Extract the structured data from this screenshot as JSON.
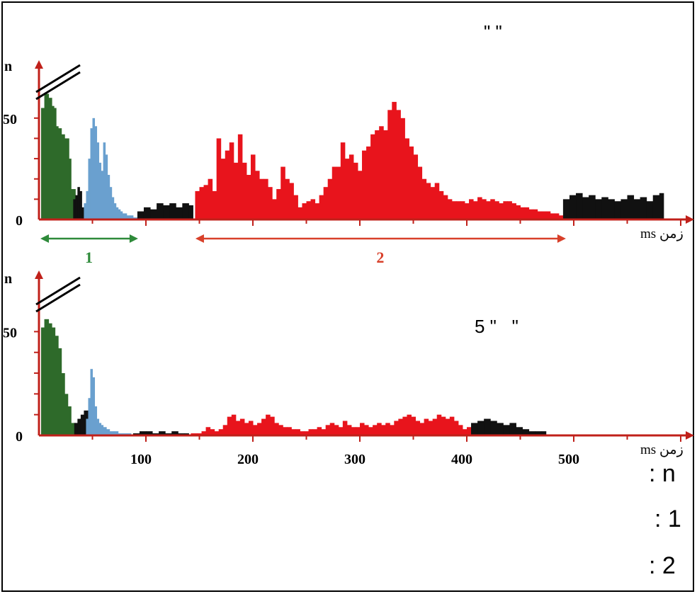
{
  "annotations": {
    "top_title": "\" \"",
    "bottom_title": "5 \"   \"",
    "legend_n": ": n",
    "legend_1": ": 1",
    "legend_2": ": 2"
  },
  "colors": {
    "axis": "#c0201a",
    "phase1": "#2e6a2a",
    "phase1b": "#6aa0cf",
    "phase2": "#e8141c",
    "baseline": "#111111",
    "range1_arrow": "#2e8a3a",
    "range2_arrow": "#d8402a"
  },
  "chart_data": [
    {
      "type": "bar",
      "ylabel": "n",
      "xlabel": "ms زمن",
      "y_ticks": [
        "50",
        "0"
      ],
      "ylim": [
        0,
        55
      ],
      "xlim": [
        0,
        500
      ],
      "axis_break": true,
      "range_labels": [
        {
          "label": "1",
          "from": 0,
          "to": 90,
          "color": "green"
        },
        {
          "label": "2",
          "from": 145,
          "to": 490,
          "color": "red"
        }
      ],
      "series": [
        {
          "color_key": "phase1",
          "bars": [
            [
              2,
              55
            ],
            [
              5,
              62
            ],
            [
              9,
              60
            ],
            [
              12,
              56
            ],
            [
              14,
              55
            ],
            [
              16,
              46
            ],
            [
              18,
              45
            ],
            [
              21,
              42
            ],
            [
              24,
              40
            ],
            [
              26,
              40
            ],
            [
              28,
              30
            ],
            [
              30,
              15
            ]
          ]
        },
        {
          "color_key": "baseline",
          "bars": [
            [
              32,
              10
            ],
            [
              34,
              12
            ],
            [
              36,
              16
            ],
            [
              38,
              14
            ],
            [
              40,
              6
            ]
          ]
        },
        {
          "color_key": "phase1b",
          "bars": [
            [
              42,
              8
            ],
            [
              44,
              14
            ],
            [
              46,
              30
            ],
            [
              48,
              45
            ],
            [
              50,
              50
            ],
            [
              52,
              46
            ],
            [
              54,
              38
            ],
            [
              56,
              28
            ],
            [
              58,
              24
            ],
            [
              60,
              38
            ],
            [
              62,
              32
            ],
            [
              64,
              22
            ],
            [
              66,
              16
            ],
            [
              68,
              11
            ],
            [
              70,
              8
            ],
            [
              72,
              6
            ],
            [
              74,
              5
            ],
            [
              76,
              4
            ],
            [
              78,
              3
            ],
            [
              80,
              3
            ],
            [
              82,
              2
            ],
            [
              85,
              2
            ],
            [
              88,
              1
            ]
          ]
        },
        {
          "color_key": "baseline",
          "bars": [
            [
              92,
              4
            ],
            [
              98,
              6
            ],
            [
              104,
              5
            ],
            [
              110,
              8
            ],
            [
              116,
              7
            ],
            [
              122,
              8
            ],
            [
              128,
              6
            ],
            [
              134,
              8
            ],
            [
              140,
              7
            ]
          ]
        },
        {
          "color_key": "phase2",
          "bars": [
            [
              146,
              14
            ],
            [
              150,
              16
            ],
            [
              154,
              17
            ],
            [
              158,
              20
            ],
            [
              162,
              14
            ],
            [
              166,
              40
            ],
            [
              170,
              30
            ],
            [
              174,
              34
            ],
            [
              178,
              38
            ],
            [
              182,
              28
            ],
            [
              186,
              42
            ],
            [
              190,
              28
            ],
            [
              194,
              22
            ],
            [
              198,
              32
            ],
            [
              202,
              24
            ],
            [
              206,
              20
            ],
            [
              210,
              20
            ],
            [
              214,
              16
            ],
            [
              218,
              10
            ],
            [
              222,
              15
            ],
            [
              226,
              26
            ],
            [
              230,
              20
            ],
            [
              234,
              18
            ],
            [
              238,
              12
            ],
            [
              242,
              6
            ],
            [
              246,
              8
            ],
            [
              250,
              9
            ],
            [
              254,
              10
            ],
            [
              258,
              8
            ],
            [
              262,
              12
            ],
            [
              266,
              16
            ],
            [
              270,
              20
            ],
            [
              274,
              26
            ],
            [
              278,
              26
            ],
            [
              282,
              38
            ],
            [
              286,
              30
            ],
            [
              290,
              32
            ],
            [
              294,
              28
            ],
            [
              298,
              24
            ],
            [
              302,
              34
            ],
            [
              306,
              36
            ],
            [
              310,
              42
            ],
            [
              314,
              44
            ],
            [
              318,
              46
            ],
            [
              322,
              44
            ],
            [
              326,
              54
            ],
            [
              330,
              58
            ],
            [
              334,
              54
            ],
            [
              338,
              50
            ],
            [
              342,
              40
            ],
            [
              346,
              36
            ],
            [
              350,
              32
            ],
            [
              354,
              26
            ],
            [
              358,
              20
            ],
            [
              362,
              18
            ],
            [
              366,
              16
            ],
            [
              370,
              18
            ],
            [
              374,
              14
            ],
            [
              378,
              12
            ],
            [
              382,
              10
            ],
            [
              386,
              9
            ],
            [
              390,
              9
            ],
            [
              394,
              9
            ],
            [
              398,
              8
            ],
            [
              402,
              10
            ],
            [
              406,
              9
            ],
            [
              410,
              11
            ],
            [
              414,
              10
            ],
            [
              418,
              9
            ],
            [
              422,
              10
            ],
            [
              426,
              9
            ],
            [
              430,
              8
            ],
            [
              434,
              9
            ],
            [
              438,
              9
            ],
            [
              442,
              8
            ],
            [
              446,
              7
            ],
            [
              450,
              6
            ],
            [
              454,
              6
            ],
            [
              458,
              5
            ],
            [
              462,
              5
            ],
            [
              466,
              4
            ],
            [
              470,
              4
            ],
            [
              474,
              4
            ],
            [
              478,
              3
            ],
            [
              482,
              3
            ],
            [
              486,
              2
            ]
          ]
        },
        {
          "color_key": "baseline",
          "bars": [
            [
              490,
              10
            ],
            [
              496,
              12
            ],
            [
              502,
              13
            ],
            [
              508,
              11
            ],
            [
              514,
              12
            ],
            [
              520,
              10
            ],
            [
              526,
              11
            ],
            [
              532,
              10
            ],
            [
              538,
              9
            ],
            [
              544,
              10
            ],
            [
              550,
              12
            ],
            [
              556,
              10
            ],
            [
              562,
              11
            ],
            [
              568,
              9
            ],
            [
              574,
              12
            ],
            [
              580,
              13
            ]
          ]
        }
      ]
    },
    {
      "type": "bar",
      "ylabel": "n",
      "xlabel": "ms زمن",
      "y_ticks": [
        "50",
        "0"
      ],
      "x_ticks": [
        "100",
        "200",
        "300",
        "400",
        "500"
      ],
      "ylim": [
        0,
        55
      ],
      "xlim": [
        0,
        500
      ],
      "axis_break": true,
      "series": [
        {
          "color_key": "phase1",
          "bars": [
            [
              2,
              52
            ],
            [
              5,
              56
            ],
            [
              9,
              54
            ],
            [
              12,
              52
            ],
            [
              15,
              48
            ],
            [
              18,
              42
            ],
            [
              21,
              30
            ],
            [
              24,
              20
            ],
            [
              27,
              14
            ],
            [
              30,
              6
            ]
          ]
        },
        {
          "color_key": "baseline",
          "bars": [
            [
              33,
              6
            ],
            [
              36,
              8
            ],
            [
              39,
              10
            ],
            [
              42,
              12
            ]
          ]
        },
        {
          "color_key": "phase1b",
          "bars": [
            [
              44,
              8
            ],
            [
              46,
              18
            ],
            [
              48,
              32
            ],
            [
              50,
              28
            ],
            [
              52,
              14
            ],
            [
              54,
              8
            ],
            [
              56,
              6
            ],
            [
              58,
              5
            ],
            [
              60,
              4
            ],
            [
              63,
              3
            ],
            [
              66,
              2
            ],
            [
              70,
              2
            ],
            [
              74,
              1
            ],
            [
              78,
              1
            ],
            [
              82,
              1
            ]
          ]
        },
        {
          "color_key": "baseline",
          "bars": [
            [
              88,
              1
            ],
            [
              94,
              2
            ],
            [
              100,
              2
            ],
            [
              106,
              1
            ],
            [
              112,
              2
            ],
            [
              118,
              1
            ],
            [
              124,
              2
            ],
            [
              130,
              1
            ],
            [
              136,
              1
            ]
          ]
        },
        {
          "color_key": "phase2",
          "bars": [
            [
              142,
              1
            ],
            [
              148,
              1
            ],
            [
              152,
              2
            ],
            [
              156,
              4
            ],
            [
              160,
              3
            ],
            [
              164,
              2
            ],
            [
              168,
              3
            ],
            [
              172,
              5
            ],
            [
              176,
              9
            ],
            [
              180,
              10
            ],
            [
              184,
              7
            ],
            [
              188,
              8
            ],
            [
              192,
              6
            ],
            [
              196,
              7
            ],
            [
              200,
              5
            ],
            [
              204,
              6
            ],
            [
              208,
              8
            ],
            [
              212,
              10
            ],
            [
              216,
              9
            ],
            [
              220,
              6
            ],
            [
              224,
              5
            ],
            [
              228,
              4
            ],
            [
              232,
              4
            ],
            [
              236,
              3
            ],
            [
              240,
              3
            ],
            [
              244,
              2
            ],
            [
              248,
              2
            ],
            [
              252,
              3
            ],
            [
              256,
              3
            ],
            [
              260,
              4
            ],
            [
              264,
              3
            ],
            [
              268,
              5
            ],
            [
              272,
              6
            ],
            [
              276,
              5
            ],
            [
              280,
              4
            ],
            [
              284,
              7
            ],
            [
              288,
              5
            ],
            [
              292,
              4
            ],
            [
              296,
              4
            ],
            [
              300,
              6
            ],
            [
              304,
              5
            ],
            [
              308,
              4
            ],
            [
              312,
              5
            ],
            [
              316,
              6
            ],
            [
              320,
              5
            ],
            [
              324,
              6
            ],
            [
              328,
              5
            ],
            [
              332,
              7
            ],
            [
              336,
              8
            ],
            [
              340,
              9
            ],
            [
              344,
              10
            ],
            [
              348,
              9
            ],
            [
              352,
              7
            ],
            [
              356,
              6
            ],
            [
              360,
              8
            ],
            [
              364,
              7
            ],
            [
              368,
              8
            ],
            [
              372,
              10
            ],
            [
              376,
              9
            ],
            [
              380,
              8
            ],
            [
              384,
              9
            ],
            [
              388,
              7
            ],
            [
              392,
              5
            ],
            [
              396,
              3
            ],
            [
              400,
              4
            ]
          ]
        },
        {
          "color_key": "baseline",
          "bars": [
            [
              404,
              6
            ],
            [
              410,
              7
            ],
            [
              416,
              8
            ],
            [
              422,
              7
            ],
            [
              428,
              6
            ],
            [
              434,
              5
            ],
            [
              440,
              6
            ],
            [
              446,
              4
            ],
            [
              452,
              3
            ],
            [
              458,
              2
            ],
            [
              464,
              2
            ],
            [
              470,
              2
            ]
          ]
        }
      ]
    }
  ]
}
